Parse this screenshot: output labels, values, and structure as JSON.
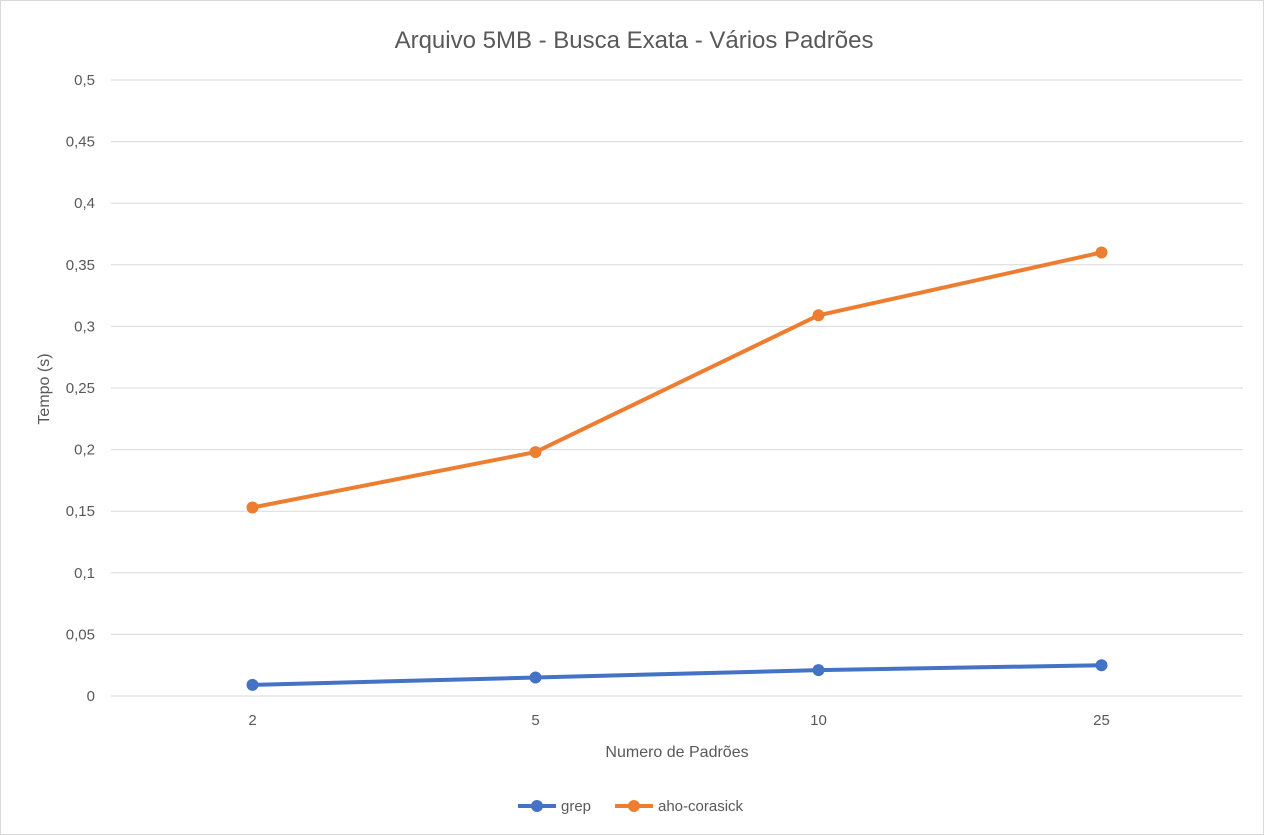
{
  "chart_data": {
    "type": "line",
    "title": "Arquivo 5MB - Busca Exata - Vários Padrões",
    "xlabel": "Numero de Padrões",
    "ylabel": "Tempo (s)",
    "categories": [
      "2",
      "5",
      "10",
      "25"
    ],
    "ylim": [
      0,
      0.5
    ],
    "yticks": [
      0,
      0.05,
      0.1,
      0.15,
      0.2,
      0.25,
      0.3,
      0.35,
      0.4,
      0.45,
      0.5
    ],
    "ytick_labels": [
      "0",
      "0,05",
      "0,1",
      "0,15",
      "0,2",
      "0,25",
      "0,3",
      "0,35",
      "0,4",
      "0,45",
      "0,5"
    ],
    "grid": true,
    "legend_position": "bottom",
    "series": [
      {
        "name": "grep",
        "color": "#4472C4",
        "values": [
          0.009,
          0.015,
          0.021,
          0.025
        ]
      },
      {
        "name": "aho-corasick",
        "color": "#ED7D31",
        "values": [
          0.153,
          0.198,
          0.309,
          0.36
        ]
      }
    ]
  }
}
